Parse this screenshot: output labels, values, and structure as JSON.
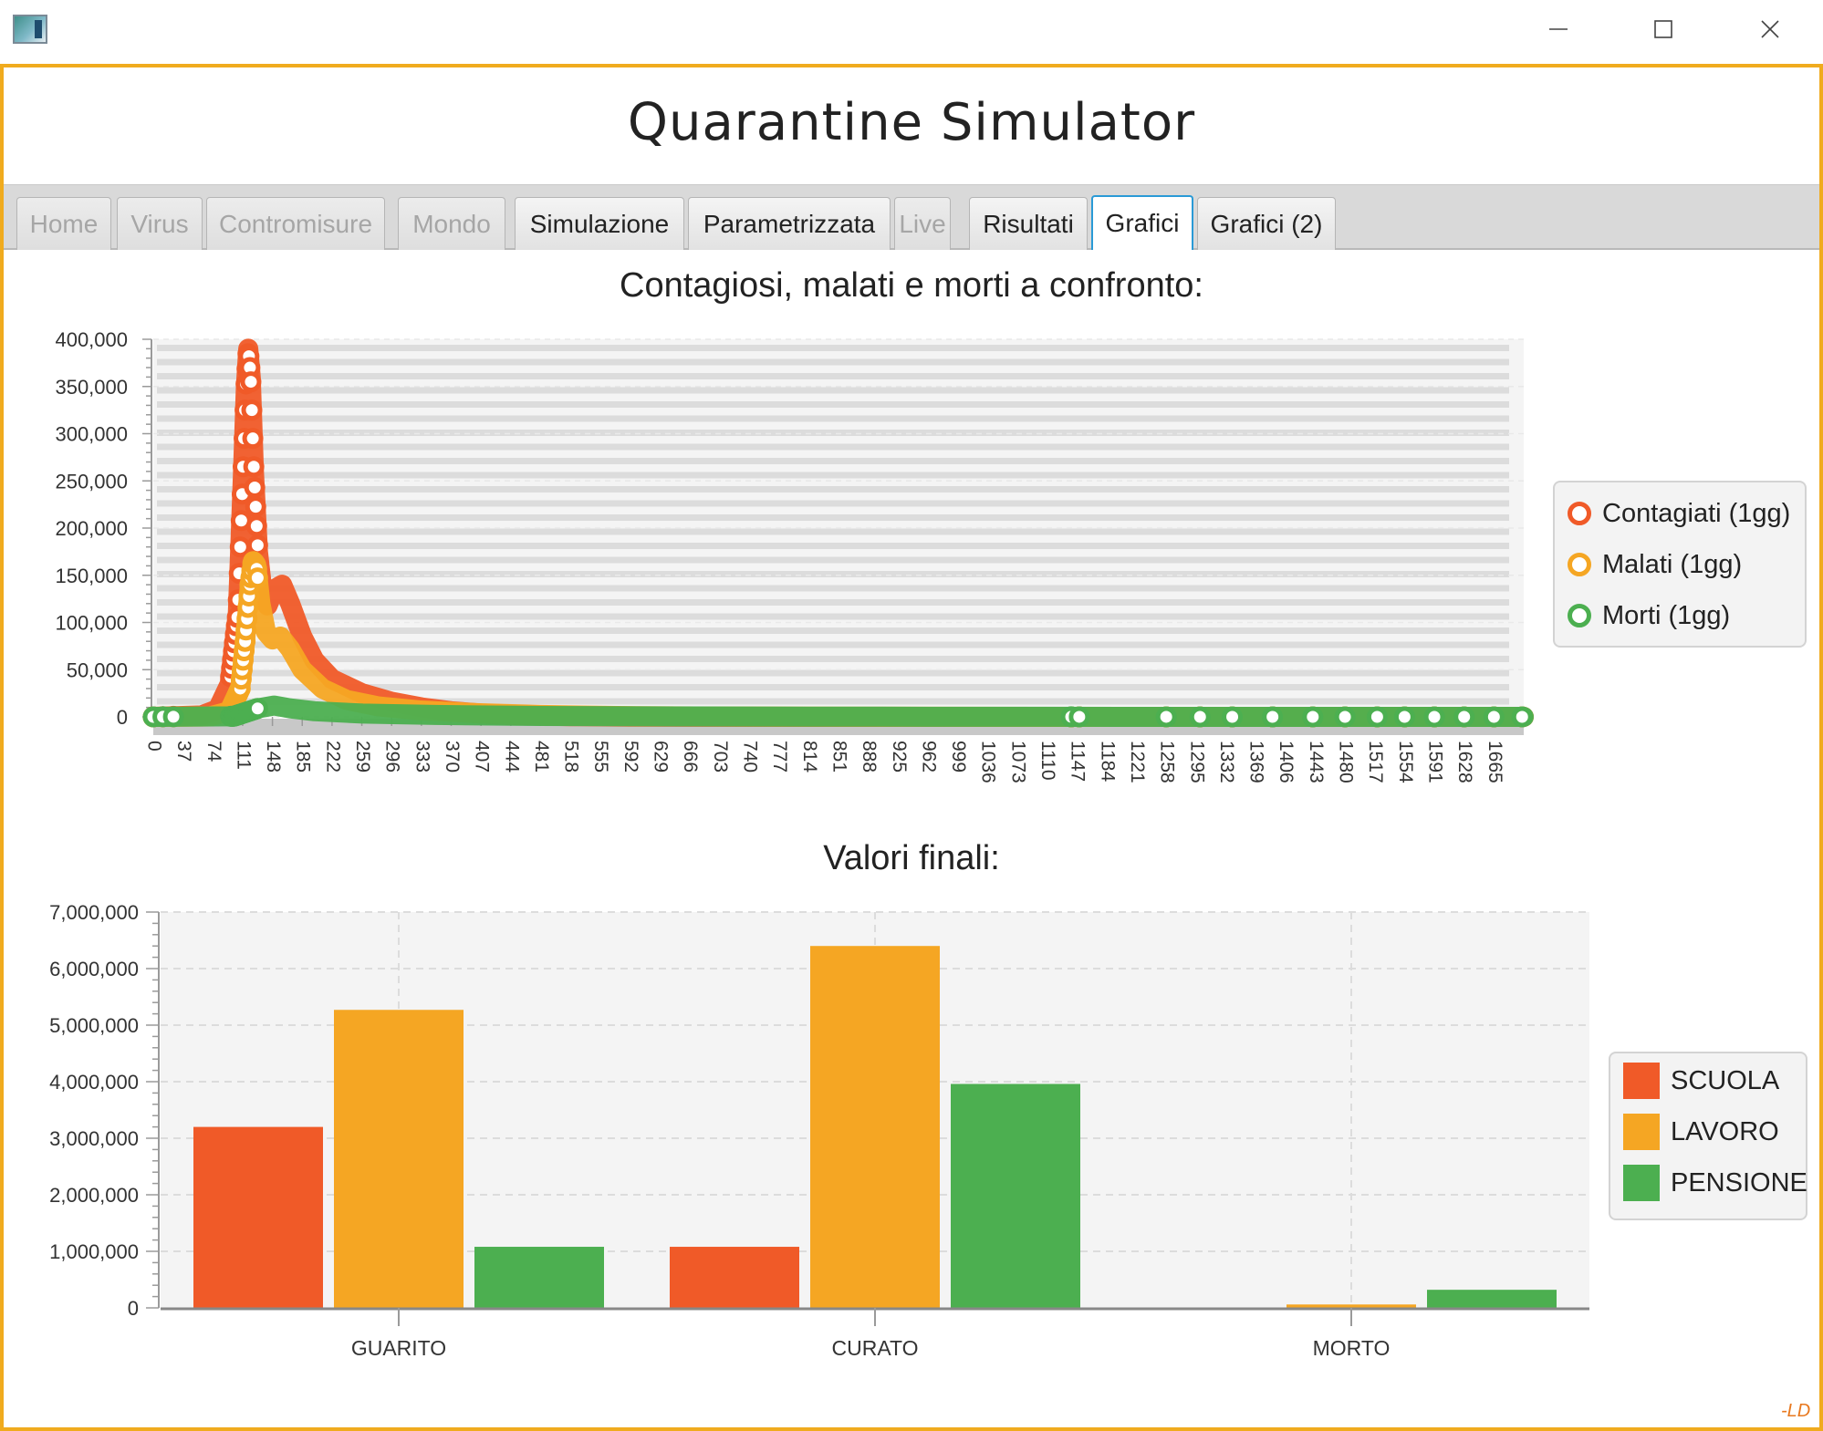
{
  "window": {
    "app_icon": "app-window-icon",
    "controls": {
      "minimize_icon": "minimize-icon",
      "maximize_icon": "maximize-icon",
      "close_icon": "close-icon"
    }
  },
  "app": {
    "title": "Quarantine Simulator",
    "accent": "#f0ab1e"
  },
  "tabs": [
    {
      "label": "Home",
      "state": "disabled"
    },
    {
      "label": "Virus",
      "state": "disabled"
    },
    {
      "label": "Contromisure",
      "state": "disabled"
    },
    {
      "label": "Mondo",
      "state": "disabled"
    },
    {
      "label": "Simulazione",
      "state": "enabled"
    },
    {
      "label": "Parametrizzata",
      "state": "enabled"
    },
    {
      "label": "Live",
      "state": "disabled"
    },
    {
      "label": "Risultati",
      "state": "enabled"
    },
    {
      "label": "Grafici",
      "state": "selected"
    },
    {
      "label": "Grafici (2)",
      "state": "enabled"
    }
  ],
  "chart1": {
    "title": "Contagiosi, malati e morti a confronto:",
    "legend": [
      {
        "label": "Contagiati (1gg)",
        "color": "#f05a28"
      },
      {
        "label": "Malati (1gg)",
        "color": "#f5a623"
      },
      {
        "label": "Morti (1gg)",
        "color": "#4caf50"
      }
    ]
  },
  "chart2": {
    "title": "Valori finali:",
    "legend": [
      {
        "label": "SCUOLA",
        "color": "#f05a28"
      },
      {
        "label": "LAVORO",
        "color": "#f5a623"
      },
      {
        "label": "PENSIONE",
        "color": "#4caf50"
      }
    ]
  },
  "chart_data": [
    {
      "type": "line",
      "title": "Contagiosi, malati e morti a confronto:",
      "xlabel": "",
      "ylabel": "",
      "ylim": [
        0,
        400000
      ],
      "y_ticks": [
        "0",
        "50,000",
        "100,000",
        "150,000",
        "200,000",
        "250,000",
        "300,000",
        "350,000",
        "400,000"
      ],
      "x_ticks": [
        "0",
        "37",
        "74",
        "111",
        "148",
        "185",
        "222",
        "259",
        "296",
        "333",
        "370",
        "407",
        "444",
        "481",
        "518",
        "555",
        "592",
        "629",
        "666",
        "703",
        "740",
        "777",
        "814",
        "851",
        "888",
        "925",
        "962",
        "999",
        "1036",
        "1073",
        "1110",
        "1147",
        "1184",
        "1221",
        "1258",
        "1295",
        "1332",
        "1369",
        "1406",
        "1443",
        "1480",
        "1517",
        "1554",
        "1591",
        "1628",
        "1665"
      ],
      "xlim": [
        0,
        1702
      ],
      "legend_position": "right",
      "series": [
        {
          "name": "Contagiati (1gg)",
          "color": "#f05a28",
          "points": [
            [
              0,
              0
            ],
            [
              60,
              1500
            ],
            [
              80,
              8000
            ],
            [
              95,
              35000
            ],
            [
              105,
              110000
            ],
            [
              111,
              250000
            ],
            [
              115,
              350000
            ],
            [
              118,
              390000
            ],
            [
              121,
              360000
            ],
            [
              125,
              260000
            ],
            [
              130,
              175000
            ],
            [
              136,
              130000
            ],
            [
              142,
              118000
            ],
            [
              150,
              135000
            ],
            [
              160,
              140000
            ],
            [
              170,
              120000
            ],
            [
              185,
              85000
            ],
            [
              200,
              60000
            ],
            [
              222,
              40000
            ],
            [
              259,
              25000
            ],
            [
              296,
              16000
            ],
            [
              333,
              10000
            ],
            [
              370,
              6000
            ],
            [
              407,
              3500
            ],
            [
              444,
              2000
            ],
            [
              518,
              800
            ],
            [
              592,
              300
            ],
            [
              700,
              100
            ],
            [
              900,
              20
            ],
            [
              1200,
              5
            ],
            [
              1702,
              0
            ]
          ]
        },
        {
          "name": "Malati (1gg)",
          "color": "#f5a623",
          "points": [
            [
              0,
              0
            ],
            [
              70,
              500
            ],
            [
              95,
              6000
            ],
            [
              108,
              30000
            ],
            [
              114,
              80000
            ],
            [
              120,
              140000
            ],
            [
              124,
              165000
            ],
            [
              128,
              160000
            ],
            [
              133,
              120000
            ],
            [
              140,
              90000
            ],
            [
              148,
              82000
            ],
            [
              158,
              85000
            ],
            [
              170,
              72000
            ],
            [
              185,
              50000
            ],
            [
              210,
              30000
            ],
            [
              240,
              18000
            ],
            [
              280,
              11000
            ],
            [
              330,
              7000
            ],
            [
              400,
              4000
            ],
            [
              480,
              2000
            ],
            [
              600,
              700
            ],
            [
              800,
              150
            ],
            [
              1100,
              30
            ],
            [
              1702,
              0
            ]
          ]
        },
        {
          "name": "Morti (1gg)",
          "color": "#4caf50",
          "points": [
            [
              0,
              0
            ],
            [
              100,
              600
            ],
            [
              130,
              9000
            ],
            [
              150,
              12000
            ],
            [
              170,
              9000
            ],
            [
              200,
              6000
            ],
            [
              260,
              3500
            ],
            [
              350,
              2000
            ],
            [
              480,
              1000
            ],
            [
              650,
              450
            ],
            [
              900,
              150
            ],
            [
              1200,
              40
            ],
            [
              1702,
              0
            ]
          ]
        }
      ]
    },
    {
      "type": "bar",
      "title": "Valori finali:",
      "xlabel": "",
      "ylabel": "",
      "categories": [
        "GUARITO",
        "CURATO",
        "MORTO"
      ],
      "ylim": [
        0,
        7000000
      ],
      "y_ticks": [
        "0",
        "1,000,000",
        "2,000,000",
        "3,000,000",
        "4,000,000",
        "5,000,000",
        "6,000,000",
        "7,000,000"
      ],
      "legend_position": "right",
      "series": [
        {
          "name": "SCUOLA",
          "color": "#f05a28",
          "values": [
            3200000,
            1080000,
            0
          ]
        },
        {
          "name": "LAVORO",
          "color": "#f5a623",
          "values": [
            5270000,
            6400000,
            60000
          ]
        },
        {
          "name": "PENSIONE",
          "color": "#4caf50",
          "values": [
            1080000,
            3960000,
            320000
          ]
        }
      ]
    }
  ],
  "signature": "-LD"
}
